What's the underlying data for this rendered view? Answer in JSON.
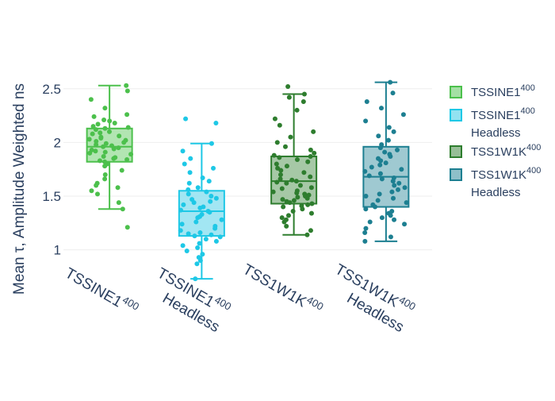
{
  "chart_data": {
    "type": "box",
    "title": "",
    "xlabel": "",
    "ylabel": "Mean τ, Amplitude Weighted ns",
    "ylim": [
      0.65,
      2.72
    ],
    "yticks": [
      "1",
      "1.5",
      "2",
      "2.5"
    ],
    "ytick_values": [
      1,
      1.5,
      2,
      2.5
    ],
    "grid": true,
    "legend_position": "top-right",
    "series": [
      {
        "name": "TSSINE1",
        "superscript": "400",
        "name_line2": "",
        "color": "#4cc04c",
        "fill": "#a4e0a4",
        "stats": {
          "min": 1.38,
          "q1": 1.82,
          "median": 1.96,
          "q3": 2.13,
          "max": 2.53,
          "outliers": [
            1.21
          ]
        },
        "points": [
          2.53,
          2.48,
          2.4,
          2.32,
          2.26,
          2.24,
          2.21,
          2.2,
          2.18,
          2.17,
          2.15,
          2.14,
          2.13,
          2.12,
          2.1,
          2.09,
          2.08,
          2.06,
          2.05,
          2.04,
          2.03,
          2.02,
          2.01,
          2.0,
          1.99,
          1.98,
          1.97,
          1.96,
          1.95,
          1.94,
          1.93,
          1.92,
          1.91,
          1.9,
          1.89,
          1.87,
          1.86,
          1.85,
          1.84,
          1.83,
          1.82,
          1.8,
          1.78,
          1.74,
          1.7,
          1.66,
          1.62,
          1.6,
          1.58,
          1.55,
          1.52,
          1.44,
          1.38,
          1.21
        ]
      },
      {
        "name": "TSSINE1",
        "superscript": "400",
        "name_line2": "Headless",
        "color": "#1ec8e6",
        "fill": "#92e2f1",
        "stats": {
          "min": 0.73,
          "q1": 1.13,
          "median": 1.36,
          "q3": 1.55,
          "max": 1.99,
          "outliers": [
            2.22,
            2.18
          ]
        },
        "points": [
          2.22,
          2.18,
          1.99,
          1.92,
          1.85,
          1.8,
          1.76,
          1.72,
          1.67,
          1.64,
          1.62,
          1.58,
          1.56,
          1.54,
          1.52,
          1.5,
          1.48,
          1.47,
          1.45,
          1.44,
          1.42,
          1.4,
          1.39,
          1.37,
          1.36,
          1.35,
          1.33,
          1.31,
          1.3,
          1.28,
          1.26,
          1.24,
          1.22,
          1.2,
          1.18,
          1.16,
          1.15,
          1.14,
          1.13,
          1.12,
          1.1,
          1.08,
          1.06,
          1.04,
          1.02,
          0.99,
          0.96,
          0.93,
          0.9,
          0.87,
          0.73
        ]
      },
      {
        "name": "TSS1W1K",
        "superscript": "400",
        "name_line2": "",
        "color": "#2e7d2e",
        "fill": "#97be97",
        "stats": {
          "min": 1.14,
          "q1": 1.43,
          "median": 1.64,
          "q3": 1.87,
          "max": 2.45,
          "outliers": [
            2.52
          ]
        },
        "points": [
          2.52,
          2.45,
          2.42,
          2.38,
          2.3,
          2.22,
          2.16,
          2.1,
          2.05,
          2.0,
          1.96,
          1.93,
          1.9,
          1.88,
          1.87,
          1.86,
          1.84,
          1.82,
          1.8,
          1.78,
          1.76,
          1.74,
          1.72,
          1.7,
          1.68,
          1.66,
          1.65,
          1.64,
          1.63,
          1.62,
          1.6,
          1.58,
          1.57,
          1.55,
          1.54,
          1.53,
          1.52,
          1.51,
          1.5,
          1.49,
          1.48,
          1.47,
          1.46,
          1.45,
          1.44,
          1.43,
          1.42,
          1.41,
          1.4,
          1.38,
          1.36,
          1.34,
          1.32,
          1.3,
          1.28,
          1.26,
          1.22,
          1.18,
          1.14
        ]
      },
      {
        "name": "TSS1W1K",
        "superscript": "400",
        "name_line2": "Headless",
        "color": "#1d7f91",
        "fill": "#8ec0c9",
        "stats": {
          "min": 1.08,
          "q1": 1.4,
          "median": 1.68,
          "q3": 1.96,
          "max": 2.56,
          "outliers": []
        },
        "points": [
          2.56,
          2.46,
          2.38,
          2.32,
          2.26,
          2.2,
          2.14,
          2.1,
          2.06,
          2.02,
          1.98,
          1.95,
          1.93,
          1.91,
          1.89,
          1.87,
          1.85,
          1.83,
          1.81,
          1.79,
          1.77,
          1.75,
          1.73,
          1.71,
          1.69,
          1.67,
          1.66,
          1.64,
          1.62,
          1.6,
          1.58,
          1.56,
          1.54,
          1.52,
          1.5,
          1.48,
          1.46,
          1.44,
          1.42,
          1.4,
          1.38,
          1.36,
          1.34,
          1.32,
          1.3,
          1.28,
          1.26,
          1.24,
          1.2,
          1.16,
          1.12,
          1.08
        ]
      }
    ]
  }
}
